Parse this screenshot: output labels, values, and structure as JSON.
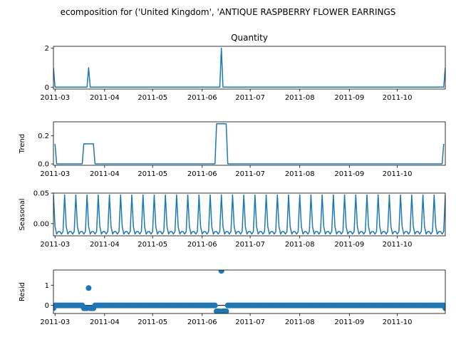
{
  "chart_data": {
    "type": "line",
    "suptitle": "ecomposition for ('United Kingdom', 'ANTIQUE RASPBERRY FLOWER EARRINGS",
    "x_range": [
      "2011-02-28",
      "2011-10-31"
    ],
    "x_tick_labels": [
      "2011-03",
      "2011-04",
      "2011-05",
      "2011-06",
      "2011-07",
      "2011-08",
      "2011-09",
      "2011-10"
    ],
    "panels": [
      {
        "id": "observed",
        "title": "Quantity",
        "ylabel": "",
        "kind": "line",
        "ylim": [
          -0.1,
          2.1
        ],
        "yticks": [
          0,
          2
        ],
        "baseline": 0,
        "spikes": [
          {
            "date": "2011-02-28",
            "value": 1
          },
          {
            "date": "2011-03-22",
            "value": 1
          },
          {
            "date": "2011-06-13",
            "value": 2
          },
          {
            "date": "2011-10-31",
            "value": 1
          }
        ]
      },
      {
        "id": "trend",
        "title": "",
        "ylabel": "Trend",
        "kind": "line",
        "ylim": [
          -0.01,
          0.3
        ],
        "yticks": [
          0.0,
          0.2
        ],
        "points": [
          {
            "date": "2011-03-01",
            "value": 0.143
          },
          {
            "date": "2011-03-02",
            "value": 0
          },
          {
            "date": "2011-03-18",
            "value": 0
          },
          {
            "date": "2011-03-19",
            "value": 0.143
          },
          {
            "date": "2011-03-25",
            "value": 0.143
          },
          {
            "date": "2011-03-26",
            "value": 0
          },
          {
            "date": "2011-06-09",
            "value": 0
          },
          {
            "date": "2011-06-10",
            "value": 0.286
          },
          {
            "date": "2011-06-16",
            "value": 0.286
          },
          {
            "date": "2011-06-17",
            "value": 0
          },
          {
            "date": "2011-10-29",
            "value": 0
          },
          {
            "date": "2011-10-30",
            "value": 0.143
          }
        ]
      },
      {
        "id": "seasonal",
        "title": "",
        "ylabel": "Seasonal",
        "kind": "line",
        "ylim": [
          -0.02,
          0.05
        ],
        "yticks": [
          0.0,
          0.05
        ],
        "period_days": 7,
        "pattern": [
          0.047,
          -0.005,
          -0.017,
          -0.013,
          -0.013,
          -0.017,
          -0.013
        ]
      },
      {
        "id": "resid",
        "title": "",
        "ylabel": "Resid",
        "kind": "scatter",
        "ylim": [
          -0.4,
          1.75
        ],
        "yticks": [
          0,
          1
        ],
        "zero_line": true,
        "outliers": [
          {
            "date": "2011-02-28",
            "value": -0.14
          },
          {
            "date": "2011-03-19",
            "value": -0.14
          },
          {
            "date": "2011-03-20",
            "value": -0.14
          },
          {
            "date": "2011-03-21",
            "value": -0.14
          },
          {
            "date": "2011-03-22",
            "value": 0.86
          },
          {
            "date": "2011-03-23",
            "value": -0.14
          },
          {
            "date": "2011-03-24",
            "value": -0.14
          },
          {
            "date": "2011-03-25",
            "value": -0.14
          },
          {
            "date": "2011-06-10",
            "value": -0.29
          },
          {
            "date": "2011-06-11",
            "value": -0.29
          },
          {
            "date": "2011-06-12",
            "value": -0.29
          },
          {
            "date": "2011-06-13",
            "value": 1.71
          },
          {
            "date": "2011-06-14",
            "value": -0.29
          },
          {
            "date": "2011-06-15",
            "value": -0.29
          },
          {
            "date": "2011-06-16",
            "value": -0.29
          },
          {
            "date": "2011-10-31",
            "value": -0.14
          }
        ]
      }
    ]
  }
}
